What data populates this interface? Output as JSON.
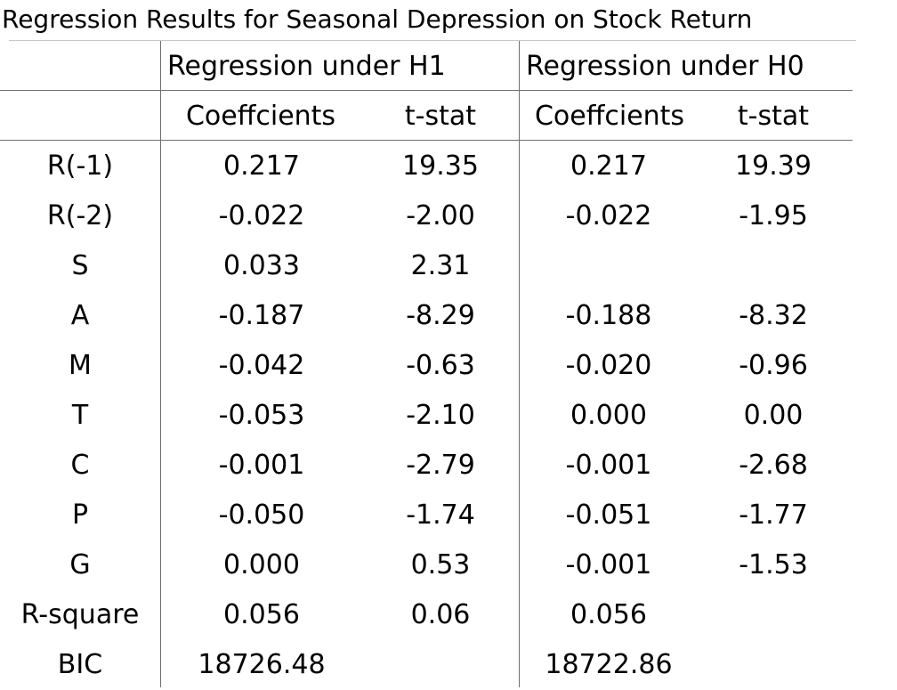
{
  "title": "Regression Results for Seasonal Depression on Stock Return",
  "groups": [
    "Regression under H1",
    "Regression under H0"
  ],
  "subheaders": [
    "Coeffcients",
    "t-stat",
    "Coeffcients",
    "t-stat"
  ],
  "rows": [
    {
      "label": "R(-1)",
      "cells": [
        "0.217",
        "19.35",
        "0.217",
        "19.39"
      ]
    },
    {
      "label": "R(-2)",
      "cells": [
        "-0.022",
        "-2.00",
        "-0.022",
        "-1.95"
      ]
    },
    {
      "label": "S",
      "cells": [
        "0.033",
        "2.31",
        "",
        ""
      ]
    },
    {
      "label": "A",
      "cells": [
        "-0.187",
        "-8.29",
        "-0.188",
        "-8.32"
      ]
    },
    {
      "label": "M",
      "cells": [
        "-0.042",
        "-0.63",
        "-0.020",
        "-0.96"
      ]
    },
    {
      "label": "T",
      "cells": [
        "-0.053",
        "-2.10",
        "0.000",
        "0.00"
      ]
    },
    {
      "label": "C",
      "cells": [
        "-0.001",
        "-2.79",
        "-0.001",
        "-2.68"
      ]
    },
    {
      "label": "P",
      "cells": [
        "-0.050",
        "-1.74",
        "-0.051",
        "-1.77"
      ]
    },
    {
      "label": "G",
      "cells": [
        "0.000",
        "0.53",
        "-0.001",
        "-1.53"
      ]
    },
    {
      "label": "R-square",
      "cells": [
        "0.056",
        "0.06",
        "0.056",
        ""
      ]
    },
    {
      "label": "BIC",
      "cells": [
        "18726.48",
        "",
        "18722.86",
        ""
      ]
    }
  ]
}
